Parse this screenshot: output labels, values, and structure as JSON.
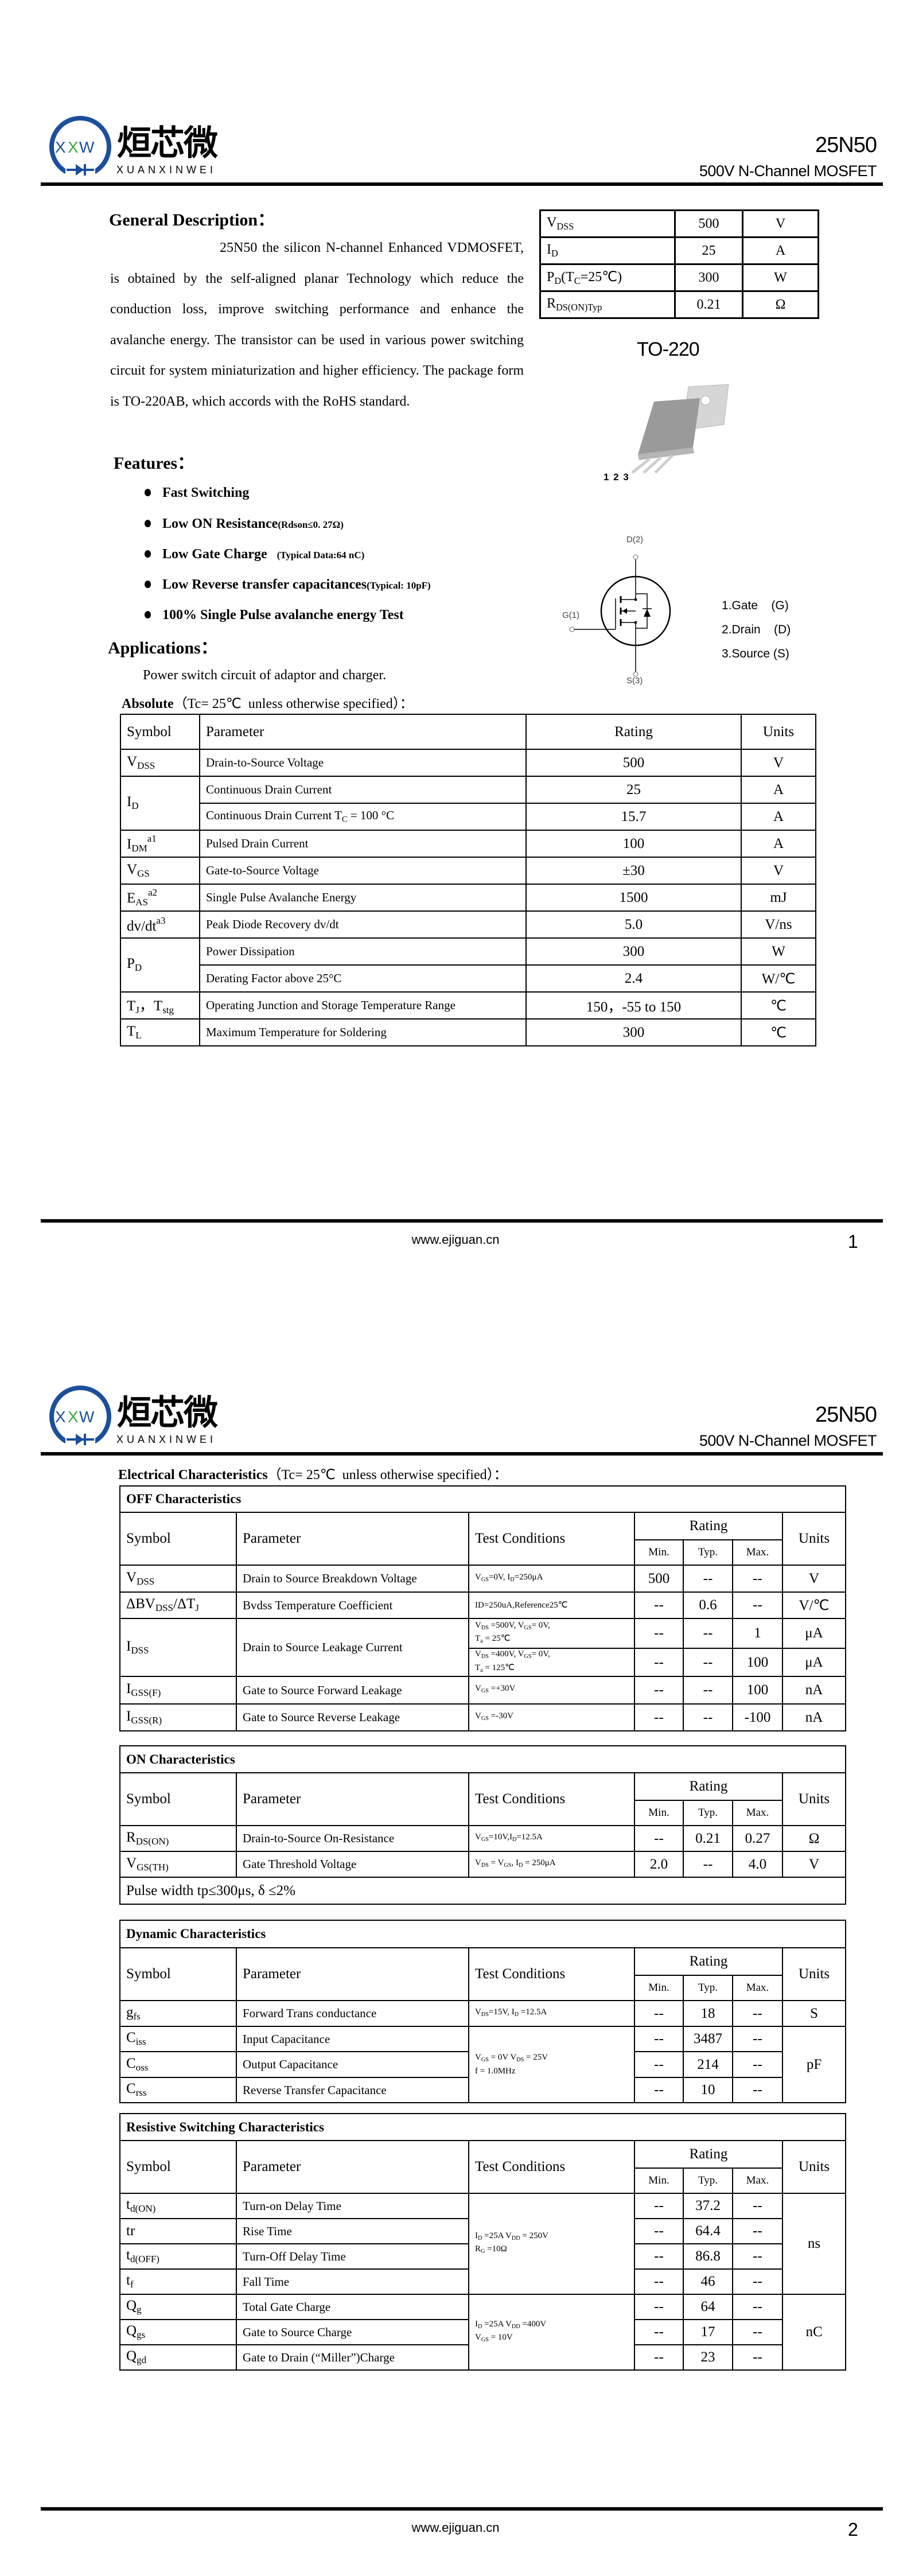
{
  "header": {
    "brand_cn": "烜芯微",
    "brand_en": "XUANXINWEI",
    "logo_letters": "XXW",
    "part": "25N50",
    "subtitle": "500V N-Channel MOSFET",
    "colors": {
      "logo_blue": "#1b4f9c",
      "logo_green": "#3aa935"
    }
  },
  "general_description": {
    "heading": "General Description：",
    "paragraph": "25N50 the silicon N-channel Enhanced VDMOSFET, is obtained by the self-aligned planar Technology which reduce the conduction loss, improve switching performance and enhance the avalanche energy. The transistor can be used in various power switching circuit for system miniaturization and higher efficiency. The package form is TO-220AB, which accords with the RoHS standard."
  },
  "key_specs": [
    {
      "sym": [
        {
          "t": "V"
        },
        {
          "t": "DSS",
          "s": "sub"
        }
      ],
      "value": "500",
      "unit": "V"
    },
    {
      "sym": [
        {
          "t": "I"
        },
        {
          "t": "D",
          "s": "sub"
        }
      ],
      "value": "25",
      "unit": "A"
    },
    {
      "sym": [
        {
          "t": "P"
        },
        {
          "t": "D",
          "s": "sub"
        },
        {
          "t": "(T"
        },
        {
          "t": "C",
          "s": "sub"
        },
        {
          "t": "=25℃)"
        }
      ],
      "value": "300",
      "unit": "W"
    },
    {
      "sym": [
        {
          "t": "R"
        },
        {
          "t": "DS(ON)Typ",
          "s": "sub"
        }
      ],
      "value": "0.21",
      "unit": "Ω"
    }
  ],
  "package": {
    "label": "TO-220",
    "pins": "1 2 3"
  },
  "schematic": {
    "drain": "D(2)",
    "gate": "G(1)",
    "source": "S(3)"
  },
  "pin_legend": [
    "1.Gate    (G)",
    "2.Drain    (D)",
    "3.Source (S)"
  ],
  "features": {
    "heading": "Features：",
    "items": [
      {
        "main": "Fast Switching",
        "note": ""
      },
      {
        "main": "Low ON Resistance",
        "note": "(Rdson≤0. 27Ω)"
      },
      {
        "main": "Low Gate Charge",
        "note": "    (Typical Data:64 nC)"
      },
      {
        "main": "Low Reverse transfer capacitances",
        "note": "(Typical: 10pF)"
      },
      {
        "main": "100% Single Pulse avalanche energy Test",
        "note": ""
      }
    ]
  },
  "applications": {
    "heading": "Applications：",
    "text": "Power switch circuit of adaptor and charger."
  },
  "absolute": {
    "heading": "Absolute",
    "condition": "（Tc= 25℃  unless otherwise specified）：",
    "columns": [
      "Symbol",
      "Parameter",
      "Rating",
      "Units"
    ],
    "rows": [
      {
        "sym": [
          {
            "t": "V"
          },
          {
            "t": "DSS",
            "s": "sub"
          }
        ],
        "param": [
          {
            "t": "Drain-to-Source Voltage"
          }
        ],
        "rating": "500",
        "unit": "V"
      },
      {
        "sym": [
          {
            "t": "I"
          },
          {
            "t": "D",
            "s": "sub"
          }
        ],
        "sym_rows": 2,
        "param": [
          {
            "t": "Continuous Drain Current"
          }
        ],
        "rating": "25",
        "unit": "A"
      },
      {
        "param": [
          {
            "t": "Continuous Drain Current T"
          },
          {
            "t": "C",
            "s": "sub"
          },
          {
            "t": " = 100 °C"
          }
        ],
        "rating": "15.7",
        "unit": "A"
      },
      {
        "sym": [
          {
            "t": "I"
          },
          {
            "t": "DM",
            "s": "sub"
          },
          {
            "t": "a1",
            "s": "sup"
          }
        ],
        "param": [
          {
            "t": "Pulsed Drain Current"
          }
        ],
        "rating": "100",
        "unit": "A"
      },
      {
        "sym": [
          {
            "t": "V"
          },
          {
            "t": "GS",
            "s": "sub"
          }
        ],
        "param": [
          {
            "t": "Gate-to-Source Voltage"
          }
        ],
        "rating": "±30",
        "unit": "V"
      },
      {
        "sym": [
          {
            "t": "E"
          },
          {
            "t": "AS",
            "s": "sub"
          },
          {
            "t": "a2",
            "s": "sup"
          }
        ],
        "param": [
          {
            "t": "Single Pulse Avalanche Energy"
          }
        ],
        "rating": "1500",
        "unit": "mJ"
      },
      {
        "sym": [
          {
            "t": "dv/dt"
          },
          {
            "t": "a3",
            "s": "sup"
          }
        ],
        "param": [
          {
            "t": "Peak Diode Recovery dv/dt"
          }
        ],
        "rating": "5.0",
        "unit": "V/ns"
      },
      {
        "sym": [
          {
            "t": "P"
          },
          {
            "t": "D",
            "s": "sub"
          }
        ],
        "sym_rows": 2,
        "param": [
          {
            "t": "Power Dissipation"
          }
        ],
        "rating": "300",
        "unit": "W"
      },
      {
        "param": [
          {
            "t": "Derating Factor above 25°C"
          }
        ],
        "rating": "2.4",
        "unit": "W/℃"
      },
      {
        "sym": [
          {
            "t": "T"
          },
          {
            "t": "J",
            "s": "sub"
          },
          {
            "t": "，T"
          },
          {
            "t": "stg",
            "s": "sub"
          }
        ],
        "param": [
          {
            "t": "Operating Junction and Storage Temperature Range"
          }
        ],
        "rating": "150，-55 to 150",
        "unit": "℃"
      },
      {
        "sym": [
          {
            "t": "T"
          },
          {
            "t": "L",
            "s": "sub"
          }
        ],
        "param": [
          {
            "t": "Maximum Temperature for Soldering"
          }
        ],
        "rating": "300",
        "unit": "℃"
      }
    ]
  },
  "electrical": {
    "heading": "Electrical Characteristics",
    "condition": "（Tc= 25℃  unless otherwise specified）：",
    "columns": {
      "symbol": "Symbol",
      "parameter": "Parameter",
      "conditions": "Test Conditions",
      "rating": "Rating",
      "min": "Min.",
      "typ": "Typ.",
      "max": "Max.",
      "units": "Units"
    },
    "sections": [
      {
        "title": "OFF Characteristics",
        "rows": [
          {
            "sym": [
              {
                "t": "V"
              },
              {
                "t": "DSS",
                "s": "sub"
              }
            ],
            "param": "Drain to Source Breakdown Voltage",
            "cond": [
              {
                "t": "V"
              },
              {
                "t": "GS",
                "s": "sub"
              },
              {
                "t": "=0V, I"
              },
              {
                "t": "D",
                "s": "sub"
              },
              {
                "t": "=250μA"
              }
            ],
            "min": "500",
            "typ": "--",
            "max": "--",
            "unit": "V"
          },
          {
            "sym": [
              {
                "t": "ΔBV"
              },
              {
                "t": "DSS",
                "s": "sub"
              },
              {
                "t": "/ΔT"
              },
              {
                "t": "J",
                "s": "sub"
              }
            ],
            "param": "Bvdss Temperature Coefficient",
            "cond": [
              {
                "t": "ID=250uA,Reference25℃"
              }
            ],
            "min": "--",
            "typ": "0.6",
            "max": "--",
            "unit": "V/℃"
          },
          {
            "sym": [
              {
                "t": "I"
              },
              {
                "t": "DSS",
                "s": "sub"
              }
            ],
            "sym_rows": 2,
            "param": "Drain to Source Leakage Current",
            "cond": [
              {
                "t": "V"
              },
              {
                "t": "DS",
                "s": "sub"
              },
              {
                "t": " =500V, V"
              },
              {
                "t": "GS",
                "s": "sub"
              },
              {
                "t": "= 0V,\nT"
              },
              {
                "t": "a",
                "s": "sub"
              },
              {
                "t": " = 25℃"
              }
            ],
            "min": "--",
            "typ": "--",
            "max": "1",
            "unit": "μA"
          },
          {
            "cond": [
              {
                "t": "V"
              },
              {
                "t": "DS",
                "s": "sub"
              },
              {
                "t": " =400V, V"
              },
              {
                "t": "GS",
                "s": "sub"
              },
              {
                "t": "= 0V,\nT"
              },
              {
                "t": "a",
                "s": "sub"
              },
              {
                "t": " = 125℃"
              }
            ],
            "min": "--",
            "typ": "--",
            "max": "100",
            "unit": "μA"
          },
          {
            "sym": [
              {
                "t": "I"
              },
              {
                "t": "GSS(F)",
                "s": "sub"
              }
            ],
            "param": "Gate to Source Forward Leakage",
            "cond": [
              {
                "t": "V"
              },
              {
                "t": "GS",
                "s": "sub"
              },
              {
                "t": " =+30V"
              }
            ],
            "min": "--",
            "typ": "--",
            "max": "100",
            "unit": "nA"
          },
          {
            "sym": [
              {
                "t": "I"
              },
              {
                "t": "GSS(R)",
                "s": "sub"
              }
            ],
            "param": "Gate to Source Reverse Leakage",
            "cond": [
              {
                "t": "V"
              },
              {
                "t": "GS",
                "s": "sub"
              },
              {
                "t": " =-30V"
              }
            ],
            "min": "--",
            "typ": "--",
            "max": "-100",
            "unit": "nA"
          }
        ]
      },
      {
        "title": "ON Characteristics",
        "rows": [
          {
            "sym": [
              {
                "t": "R"
              },
              {
                "t": "DS(ON)",
                "s": "sub"
              }
            ],
            "param": "Drain-to-Source On-Resistance",
            "cond": [
              {
                "t": "V"
              },
              {
                "t": "GS",
                "s": "sub"
              },
              {
                "t": "=10V,I"
              },
              {
                "t": "D",
                "s": "sub"
              },
              {
                "t": "=12.5A"
              }
            ],
            "min": "--",
            "typ": "0.21",
            "max": "0.27",
            "unit": "Ω"
          },
          {
            "sym": [
              {
                "t": "V"
              },
              {
                "t": "GS(TH)",
                "s": "sub"
              }
            ],
            "param": "Gate Threshold Voltage",
            "cond": [
              {
                "t": "V"
              },
              {
                "t": "DS",
                "s": "sub"
              },
              {
                "t": " = V"
              },
              {
                "t": "GS",
                "s": "sub"
              },
              {
                "t": ", I"
              },
              {
                "t": "D",
                "s": "sub"
              },
              {
                "t": " = 250μA"
              }
            ],
            "min": "2.0",
            "typ": "--",
            "max": "4.0",
            "unit": "V"
          }
        ],
        "note": "Pulse width tp≤300μs, δ ≤2%"
      },
      {
        "title": "Dynamic Characteristics",
        "rows": [
          {
            "sym": [
              {
                "t": "g"
              },
              {
                "t": "fs",
                "s": "sub"
              }
            ],
            "param": "Forward Trans conductance",
            "cond": [
              {
                "t": "V"
              },
              {
                "t": "DS",
                "s": "sub"
              },
              {
                "t": "=15V, I"
              },
              {
                "t": "D",
                "s": "sub"
              },
              {
                "t": " =12.5A"
              }
            ],
            "min": "--",
            "typ": "18",
            "max": "--",
            "unit": "S"
          },
          {
            "sym": [
              {
                "t": "C"
              },
              {
                "t": "iss",
                "s": "sub"
              }
            ],
            "param": "Input Capacitance",
            "cond": [
              {
                "t": "V"
              },
              {
                "t": "GS",
                "s": "sub"
              },
              {
                "t": " = 0V V"
              },
              {
                "t": "DS",
                "s": "sub"
              },
              {
                "t": " = 25V\nf = 1.0MHz"
              }
            ],
            "cond_rows": 3,
            "min": "--",
            "typ": "3487",
            "max": "--",
            "unit": "pF",
            "unit_rows": 3
          },
          {
            "sym": [
              {
                "t": "C"
              },
              {
                "t": "oss",
                "s": "sub"
              }
            ],
            "param": "Output Capacitance",
            "min": "--",
            "typ": "214",
            "max": "--"
          },
          {
            "sym": [
              {
                "t": "C"
              },
              {
                "t": "rss",
                "s": "sub"
              }
            ],
            "param": "Reverse Transfer Capacitance",
            "min": "--",
            "typ": "10",
            "max": "--"
          }
        ]
      },
      {
        "title": "Resistive Switching Characteristics",
        "rows": [
          {
            "sym": [
              {
                "t": "t"
              },
              {
                "t": "d(ON)",
                "s": "sub"
              }
            ],
            "param": "Turn-on Delay Time",
            "cond": [
              {
                "t": "I"
              },
              {
                "t": "D",
                "s": "sub"
              },
              {
                "t": " =25A    V"
              },
              {
                "t": "DD",
                "s": "sub"
              },
              {
                "t": " = 250V\nR"
              },
              {
                "t": "G",
                "s": "sub"
              },
              {
                "t": " =10Ω"
              }
            ],
            "cond_rows": 4,
            "min": "--",
            "typ": "37.2",
            "max": "--",
            "unit": "ns",
            "unit_rows": 4
          },
          {
            "sym": [
              {
                "t": "tr"
              }
            ],
            "param": "Rise Time",
            "min": "--",
            "typ": "64.4",
            "max": "--"
          },
          {
            "sym": [
              {
                "t": "t"
              },
              {
                "t": "d(OFF)",
                "s": "sub"
              }
            ],
            "param": "Turn-Off Delay Time",
            "min": "--",
            "typ": "86.8",
            "max": "--"
          },
          {
            "sym": [
              {
                "t": "t"
              },
              {
                "t": "f",
                "s": "sub"
              }
            ],
            "param": "Fall Time",
            "min": "--",
            "typ": "46",
            "max": "--"
          },
          {
            "sym": [
              {
                "t": "Q"
              },
              {
                "t": "g",
                "s": "sub"
              }
            ],
            "param": "Total Gate Charge",
            "cond": [
              {
                "t": "I"
              },
              {
                "t": "D",
                "s": "sub"
              },
              {
                "t": " =25A    V"
              },
              {
                "t": "DD",
                "s": "sub"
              },
              {
                "t": " =400V\nV"
              },
              {
                "t": "GS",
                "s": "sub"
              },
              {
                "t": " = 10V"
              }
            ],
            "cond_rows": 3,
            "min": "--",
            "typ": "64",
            "max": "--",
            "unit": "nC",
            "unit_rows": 3
          },
          {
            "sym": [
              {
                "t": "Q"
              },
              {
                "t": "gs",
                "s": "sub"
              }
            ],
            "param": "Gate to Source Charge",
            "min": "--",
            "typ": "17",
            "max": "--"
          },
          {
            "sym": [
              {
                "t": "Q"
              },
              {
                "t": "gd",
                "s": "sub"
              }
            ],
            "param": "Gate to Drain (“Miller”)Charge",
            "min": "--",
            "typ": "23",
            "max": "--"
          }
        ]
      }
    ]
  },
  "footer": {
    "url": "www.ejiguan.cn",
    "pages": [
      "1",
      "2"
    ]
  }
}
